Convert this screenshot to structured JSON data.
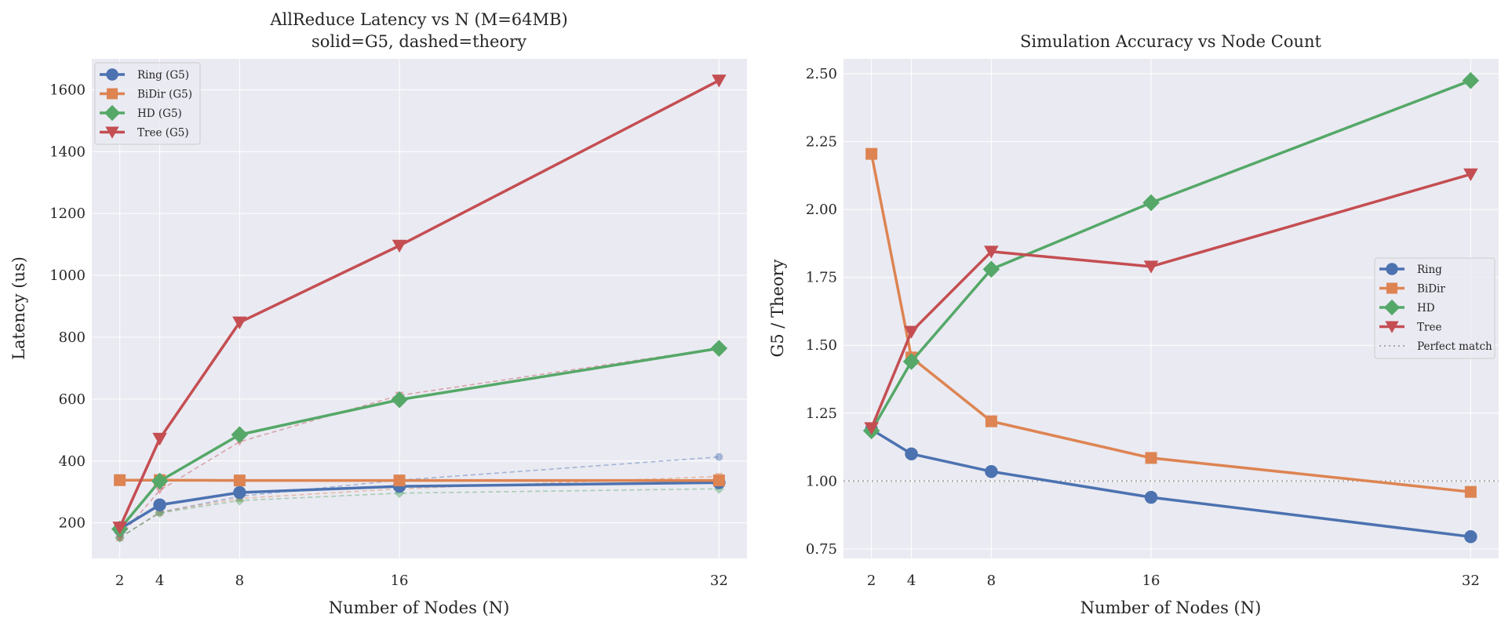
{
  "chart_data": [
    {
      "type": "line",
      "title_lines": [
        "AllReduce Latency vs N (M=64MB)",
        "solid=G5, dashed=theory"
      ],
      "xlabel": "Number of Nodes (N)",
      "ylabel": "Latency (us)",
      "x": [
        2,
        4,
        8,
        16,
        32
      ],
      "xticks": [
        2,
        4,
        8,
        16,
        32
      ],
      "xlim": [
        0.6,
        33.4
      ],
      "ylim": [
        85,
        1700
      ],
      "yticks": [
        200,
        400,
        600,
        800,
        1000,
        1200,
        1400,
        1600
      ],
      "grid": true,
      "legend_position": "upper-left",
      "series": [
        {
          "name": "Ring (G5)",
          "style": "solid",
          "marker": "circle",
          "color": "#4c72b0",
          "values": [
            180,
            258,
            298,
            318,
            330
          ]
        },
        {
          "name": "BiDir (G5)",
          "style": "solid",
          "marker": "square",
          "color": "#dd8452",
          "values": [
            338,
            338,
            337,
            337,
            337
          ]
        },
        {
          "name": "HD (G5)",
          "style": "solid",
          "marker": "diamond",
          "color": "#55a868",
          "values": [
            180,
            335,
            485,
            598,
            764
          ]
        },
        {
          "name": "Tree (G5)",
          "style": "solid",
          "marker": "triangle-down",
          "color": "#c44e52",
          "values": [
            185,
            472,
            848,
            1096,
            1630
          ]
        },
        {
          "name": "Ring (theory)",
          "style": "dashed",
          "marker": "circle",
          "color": "#4c72b0",
          "values": [
            152,
            234,
            286,
            338,
            413
          ]
        },
        {
          "name": "BiDir (theory)",
          "style": "dashed",
          "marker": "square",
          "color": "#dd8452",
          "values": [
            152,
            234,
            279,
            310,
            350
          ]
        },
        {
          "name": "HD (theory)",
          "style": "dashed",
          "marker": "diamond",
          "color": "#55a868",
          "values": [
            152,
            232,
            272,
            296,
            310
          ]
        },
        {
          "name": "Tree (theory)",
          "style": "dashed",
          "marker": "triangle-down",
          "color": "#c44e52",
          "values": [
            155,
            305,
            462,
            612,
            765
          ]
        }
      ]
    },
    {
      "type": "line",
      "title_lines": [
        "Simulation Accuracy vs Node Count"
      ],
      "xlabel": "Number of Nodes (N)",
      "ylabel": "G5 / Theory",
      "x": [
        2,
        4,
        8,
        16,
        32
      ],
      "xticks": [
        2,
        4,
        8,
        16,
        32
      ],
      "xlim": [
        0.6,
        33.4
      ],
      "ylim": [
        0.715,
        2.555
      ],
      "yticks": [
        0.75,
        1.0,
        1.25,
        1.5,
        1.75,
        2.0,
        2.25,
        2.5
      ],
      "ytick_labels": [
        "0.75",
        "1.00",
        "1.25",
        "1.50",
        "1.75",
        "2.00",
        "2.25",
        "2.50"
      ],
      "grid": true,
      "legend_position": "center-right",
      "reference_line": {
        "name": "Perfect match",
        "y": 1.0,
        "color": "#a9a9a9"
      },
      "series": [
        {
          "name": "Ring",
          "marker": "circle",
          "color": "#4c72b0",
          "values": [
            1.19,
            1.1,
            1.035,
            0.94,
            0.795
          ]
        },
        {
          "name": "BiDir",
          "marker": "square",
          "color": "#dd8452",
          "values": [
            2.205,
            1.455,
            1.22,
            1.085,
            0.96
          ]
        },
        {
          "name": "HD",
          "marker": "diamond",
          "color": "#55a868",
          "values": [
            1.185,
            1.44,
            1.78,
            2.025,
            2.475
          ]
        },
        {
          "name": "Tree",
          "marker": "triangle-down",
          "color": "#c44e52",
          "values": [
            1.195,
            1.55,
            1.845,
            1.79,
            2.13
          ]
        }
      ]
    }
  ]
}
